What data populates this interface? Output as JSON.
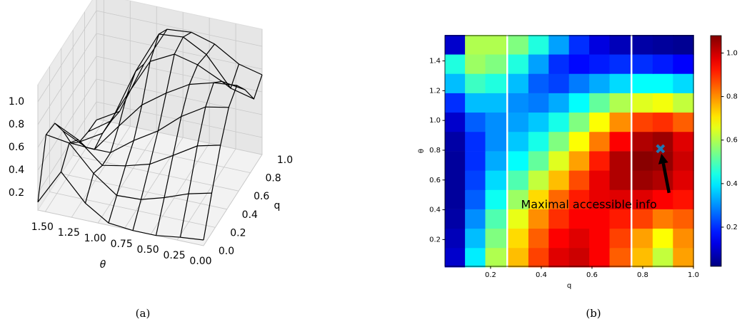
{
  "chart_data": [
    {
      "type": "surface",
      "caption": "(a)",
      "xlabel": "q",
      "ylabel": "θ",
      "color": "#000000",
      "x": [
        0,
        0.14,
        0.29,
        0.43,
        0.57,
        0.71,
        0.86,
        1.0
      ],
      "y": [
        0,
        0.22,
        0.45,
        0.67,
        0.9,
        1.12,
        1.35,
        1.57
      ],
      "z": [
        [
          0.1,
          0.4,
          0.7,
          0.92,
          1.0,
          0.85,
          0.65,
          0.75
        ],
        [
          0.08,
          0.35,
          0.65,
          0.88,
          0.98,
          0.88,
          0.7,
          0.8
        ],
        [
          0.05,
          0.27,
          0.52,
          0.75,
          0.92,
          0.98,
          0.95,
          0.93
        ],
        [
          0.05,
          0.21,
          0.4,
          0.58,
          0.8,
          1.03,
          1.06,
          0.99
        ],
        [
          0.07,
          0.2,
          0.34,
          0.45,
          0.65,
          0.92,
          1.04,
          0.97
        ],
        [
          0.2,
          0.35,
          0.3,
          0.3,
          0.42,
          0.58,
          0.67,
          0.62
        ],
        [
          0.43,
          0.57,
          0.48,
          0.3,
          0.17,
          0.2,
          0.19,
          0.16
        ],
        [
          0.12,
          0.6,
          0.58,
          0.4,
          0.18,
          0.08,
          0.05,
          0.04
        ]
      ],
      "xlim": [
        0,
        1.0
      ],
      "ylim": [
        0,
        1.57
      ],
      "zlim": [
        0.05,
        1.15
      ],
      "xticks": [
        {
          "value": 0,
          "label": "0.0"
        },
        0.2,
        0.4,
        0.6,
        0.8,
        {
          "value": 1,
          "label": "1.0"
        }
      ],
      "yticks": [
        {
          "value": 1.5,
          "label": "1.50"
        },
        {
          "value": 1.25,
          "label": "1.25"
        },
        {
          "value": 1.0,
          "label": "1.00"
        },
        {
          "value": 0.75,
          "label": "0.75"
        },
        {
          "value": 0.5,
          "label": "0.50"
        },
        {
          "value": 0.25,
          "label": "0.25"
        },
        {
          "value": 0,
          "label": "0.00"
        }
      ],
      "zticks": [
        0.2,
        0.4,
        0.6,
        0.8,
        {
          "value": 1,
          "label": "1.0"
        }
      ]
    },
    {
      "type": "heatmap",
      "caption": "(b)",
      "xlabel": "q",
      "ylabel": "θ",
      "colormap": "jet",
      "x": [
        0.06,
        0.14,
        0.22,
        0.31,
        0.39,
        0.47,
        0.55,
        0.63,
        0.71,
        0.8,
        0.88,
        0.96
      ],
      "y": [
        0.08,
        0.21,
        0.34,
        0.47,
        0.6,
        0.73,
        0.86,
        0.99,
        1.12,
        1.25,
        1.38,
        1.51
      ],
      "z": [
        [
          0.1,
          0.4,
          0.6,
          0.75,
          0.88,
          0.98,
          1.0,
          0.95,
          0.85,
          0.75,
          0.62,
          0.78
        ],
        [
          0.08,
          0.35,
          0.55,
          0.72,
          0.85,
          0.95,
          0.98,
          0.95,
          0.88,
          0.78,
          0.68,
          0.8
        ],
        [
          0.06,
          0.3,
          0.5,
          0.66,
          0.8,
          0.9,
          0.95,
          0.95,
          0.92,
          0.88,
          0.82,
          0.85
        ],
        [
          0.05,
          0.25,
          0.43,
          0.58,
          0.72,
          0.84,
          0.92,
          0.97,
          0.98,
          0.98,
          0.95,
          0.93
        ],
        [
          0.05,
          0.22,
          0.38,
          0.5,
          0.62,
          0.75,
          0.87,
          0.97,
          1.03,
          1.05,
          1.03,
          0.98
        ],
        [
          0.05,
          0.2,
          0.33,
          0.42,
          0.52,
          0.65,
          0.78,
          0.92,
          1.03,
          1.07,
          1.06,
          1.0
        ],
        [
          0.06,
          0.2,
          0.3,
          0.36,
          0.44,
          0.55,
          0.68,
          0.82,
          0.95,
          1.03,
          1.05,
          0.98
        ],
        [
          0.1,
          0.25,
          0.3,
          0.32,
          0.36,
          0.44,
          0.55,
          0.68,
          0.8,
          0.88,
          0.9,
          0.85
        ],
        [
          0.2,
          0.35,
          0.35,
          0.3,
          0.28,
          0.33,
          0.42,
          0.52,
          0.6,
          0.65,
          0.67,
          0.62
        ],
        [
          0.35,
          0.48,
          0.45,
          0.35,
          0.25,
          0.22,
          0.28,
          0.33,
          0.38,
          0.42,
          0.42,
          0.38
        ],
        [
          0.45,
          0.58,
          0.55,
          0.45,
          0.32,
          0.2,
          0.16,
          0.18,
          0.2,
          0.2,
          0.18,
          0.15
        ],
        [
          0.1,
          0.6,
          0.6,
          0.55,
          0.45,
          0.32,
          0.2,
          0.12,
          0.08,
          0.06,
          0.05,
          0.04
        ]
      ],
      "xlim": [
        0.02,
        1.0
      ],
      "ylim": [
        0.02,
        1.57
      ],
      "zlim": [
        0.02,
        1.08
      ],
      "xticks": [
        0.2,
        0.4,
        0.6,
        0.8,
        {
          "value": 1,
          "label": "1.0"
        }
      ],
      "yticks": [
        0.2,
        0.4,
        0.6,
        0.8,
        {
          "value": 1,
          "label": "1.0"
        },
        1.2,
        1.4
      ],
      "cticks": [
        0.2,
        0.4,
        0.6,
        0.8,
        {
          "value": 1,
          "label": "1.0"
        }
      ],
      "annotation": {
        "text": "Maximal accessible info",
        "point": [
          0.87,
          0.81
        ],
        "marker_color": "#1f77b4"
      }
    }
  ]
}
